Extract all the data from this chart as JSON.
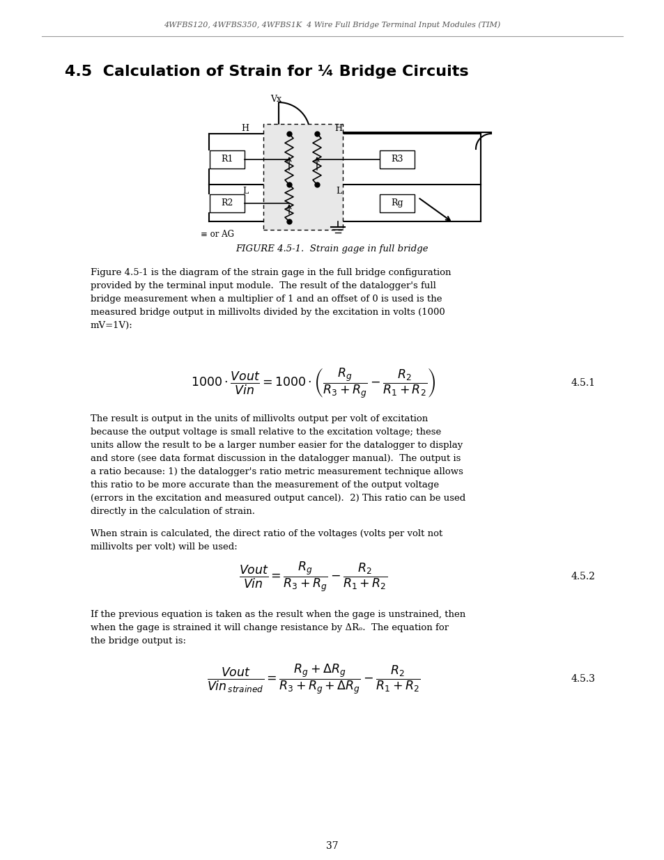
{
  "header": "4WFBS120, 4WFBS350, 4WFBS1K  4 Wire Full Bridge Terminal Input Modules (TIM)",
  "section_title": "4.5  Calculation of Strain for ¼ Bridge Circuits",
  "fig_caption": "FIGURE 4.5-1.  Strain gage in full bridge",
  "para1_lines": [
    "Figure 4.5-1 is the diagram of the strain gage in the full bridge configuration",
    "provided by the terminal input module.  The result of the datalogger's full",
    "bridge measurement when a multiplier of 1 and an offset of 0 is used is the",
    "measured bridge output in millivolts divided by the excitation in volts (1000",
    "mV=1V):"
  ],
  "para2_lines": [
    "The result is output in the units of millivolts output per volt of excitation",
    "because the output voltage is small relative to the excitation voltage; these",
    "units allow the result to be a larger number easier for the datalogger to display",
    "and store (see data format discussion in the datalogger manual).  The output is",
    "a ratio because: 1) the datalogger's ratio metric measurement technique allows",
    "this ratio to be more accurate than the measurement of the output voltage",
    "(errors in the excitation and measured output cancel).  2) This ratio can be used",
    "directly in the calculation of strain."
  ],
  "para3_lines": [
    "When strain is calculated, the direct ratio of the voltages (volts per volt not",
    "millivolts per volt) will be used:"
  ],
  "para4_lines": [
    "If the previous equation is taken as the result when the gage is unstrained, then",
    "when the gage is strained it will change resistance by ΔRₒ.  The equation for",
    "the bridge output is:"
  ],
  "eq1_label": "4.5.1",
  "eq2_label": "4.5.2",
  "eq3_label": "4.5.3",
  "page_num": "37",
  "bg": "#ffffff",
  "fg": "#000000",
  "header_color": "#555555",
  "gray_fill": "#e8e8e8"
}
